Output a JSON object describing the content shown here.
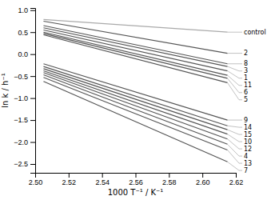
{
  "chart_data": {
    "type": "line",
    "xlabel": "1000 T⁻¹ / K⁻¹",
    "ylabel": "ln k / h⁻¹",
    "x": [
      2.505,
      2.615
    ],
    "xlim": [
      2.5,
      2.62
    ],
    "ylim": [
      -2.7,
      1.05
    ],
    "xticks": [
      {
        "value": 2.5,
        "label": "2.50"
      },
      2.52,
      2.54,
      2.56,
      2.58,
      {
        "value": 2.6,
        "label": "2.60"
      },
      2.62
    ],
    "yticks": [
      {
        "value": -2.5,
        "label": "−2.5"
      },
      {
        "value": -2.0,
        "label": "−2.0"
      },
      {
        "value": -1.5,
        "label": "−1.5"
      },
      {
        "value": -1.0,
        "label": "−1.0"
      },
      {
        "value": -0.5,
        "label": "−0.5"
      },
      {
        "value": 0.0,
        "label": "0.0"
      },
      {
        "value": 0.5,
        "label": "0.5"
      },
      {
        "value": 1.0,
        "label": "1.0"
      }
    ],
    "series": [
      {
        "name": "control",
        "color": "#aaaaaa",
        "values": [
          0.79,
          0.5
        ]
      },
      {
        "name": "2",
        "color": "#555555",
        "values": [
          0.75,
          0.02
        ]
      },
      {
        "name": "8",
        "color": "#555555",
        "values": [
          0.65,
          -0.22
        ]
      },
      {
        "name": "3",
        "color": "#555555",
        "values": [
          0.6,
          -0.28
        ]
      },
      {
        "name": "1",
        "color": "#555555",
        "values": [
          0.55,
          -0.38
        ]
      },
      {
        "name": "11",
        "color": "#555555",
        "values": [
          0.5,
          -0.48
        ]
      },
      {
        "name": "6",
        "color": "#555555",
        "values": [
          0.47,
          -0.55
        ]
      },
      {
        "name": "5",
        "color": "#555555",
        "values": [
          0.44,
          -0.65
        ]
      },
      {
        "name": "9",
        "color": "#555555",
        "values": [
          -0.22,
          -1.5
        ]
      },
      {
        "name": "14",
        "color": "#555555",
        "values": [
          -0.28,
          -1.63
        ]
      },
      {
        "name": "15",
        "color": "#555555",
        "values": [
          -0.33,
          -1.72
        ]
      },
      {
        "name": "10",
        "color": "#555555",
        "values": [
          -0.38,
          -1.82
        ]
      },
      {
        "name": "12",
        "color": "#555555",
        "values": [
          -0.42,
          -1.93
        ]
      },
      {
        "name": "4",
        "color": "#555555",
        "values": [
          -0.47,
          -2.05
        ]
      },
      {
        "name": "13",
        "color": "#555555",
        "values": [
          -0.53,
          -2.18
        ]
      },
      {
        "name": "7",
        "color": "#555555",
        "values": [
          -0.62,
          -2.45
        ]
      }
    ]
  }
}
